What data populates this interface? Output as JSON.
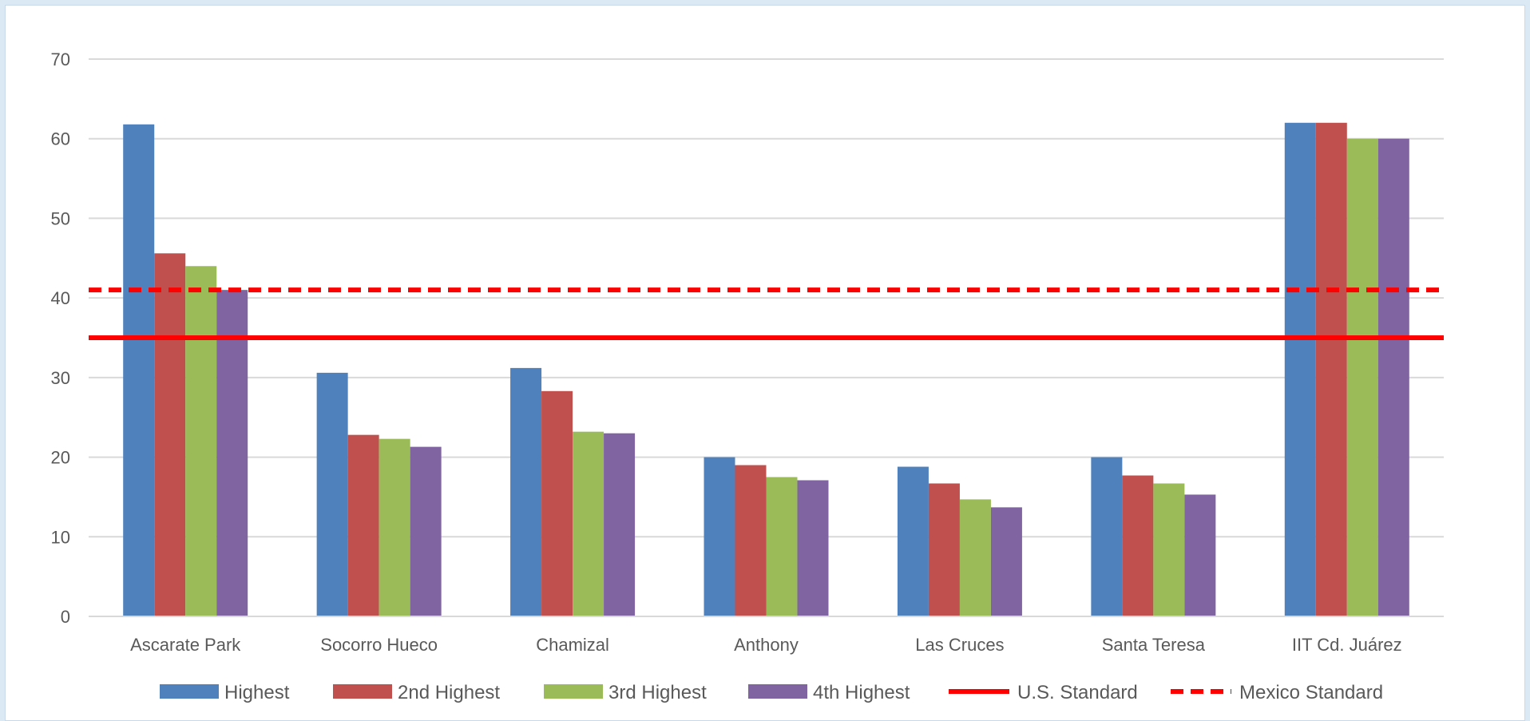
{
  "chart_data": {
    "type": "bar",
    "categories": [
      "Ascarate Park",
      "Socorro Hueco",
      "Chamizal",
      "Anthony",
      "Las Cruces",
      "Santa Teresa",
      "IIT Cd. Juárez"
    ],
    "series": [
      {
        "name": "Highest",
        "color": "#4f81bd",
        "values": [
          61.8,
          30.6,
          31.2,
          20.0,
          18.8,
          20.0,
          62.0
        ]
      },
      {
        "name": "2nd Highest",
        "color": "#c0504d",
        "values": [
          45.6,
          22.8,
          28.3,
          19.0,
          16.7,
          17.7,
          62.0
        ]
      },
      {
        "name": "3rd Highest",
        "color": "#9bbb59",
        "values": [
          44.0,
          22.3,
          23.2,
          17.5,
          14.7,
          16.7,
          60.0
        ]
      },
      {
        "name": "4th Highest",
        "color": "#8064a2",
        "values": [
          41.0,
          21.3,
          23.0,
          17.1,
          13.7,
          15.3,
          60.0
        ]
      }
    ],
    "reference_lines": [
      {
        "name": "U.S. Standard",
        "value": 35,
        "color": "#ff0000",
        "style": "solid"
      },
      {
        "name": "Mexico Standard",
        "value": 41,
        "color": "#ff0000",
        "style": "dashed"
      }
    ],
    "yticks": [
      "0",
      "10",
      "20",
      "30",
      "40",
      "50",
      "60",
      "70"
    ],
    "ylim": [
      0,
      70
    ],
    "grid": true,
    "legend": "bottom",
    "title": "",
    "xlabel": "",
    "ylabel": ""
  }
}
